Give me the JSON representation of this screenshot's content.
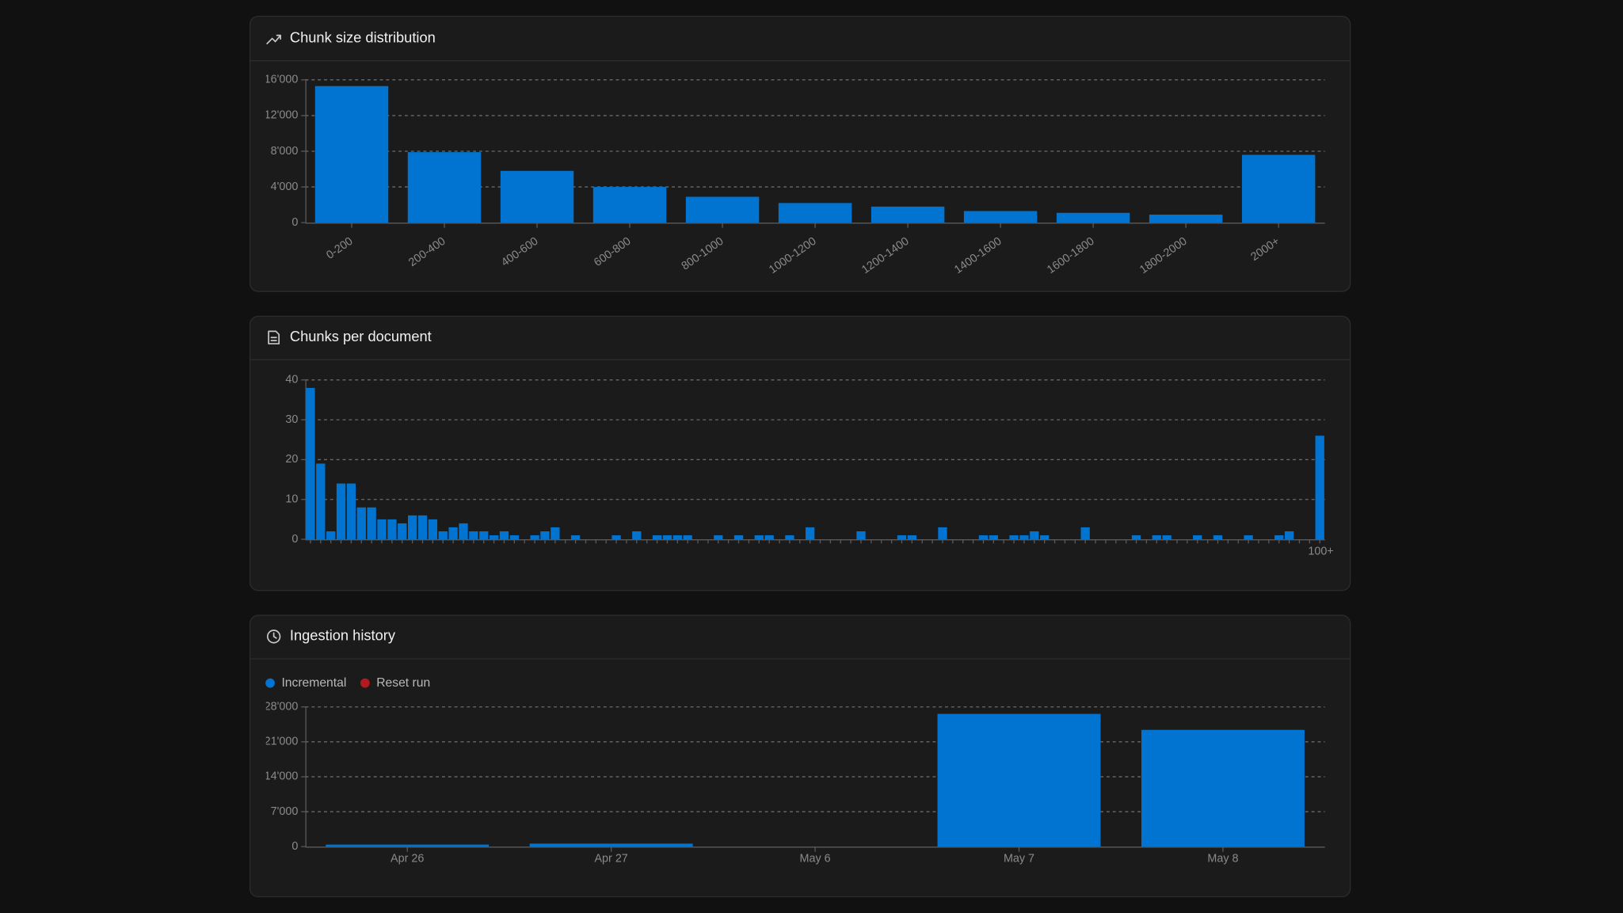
{
  "chart_data": [
    {
      "type": "bar",
      "title": "Chunk size distribution",
      "categories": [
        "0-200",
        "200-400",
        "400-600",
        "600-800",
        "800-1000",
        "1000-1200",
        "1200-1400",
        "1400-1600",
        "1600-1800",
        "1800-2000",
        "2000+"
      ],
      "values": [
        15300,
        7900,
        5800,
        4000,
        2900,
        2200,
        1800,
        1300,
        1100,
        900,
        7600
      ],
      "color": "#0074d0",
      "ylim": [
        0,
        16000
      ],
      "yticks": [
        0,
        {
          "value": 4000,
          "label": "4'000"
        },
        {
          "value": 8000,
          "label": "8'000"
        },
        {
          "value": 12000,
          "label": "12'000"
        },
        {
          "value": 16000,
          "label": "16'000"
        }
      ],
      "grid": true
    },
    {
      "type": "bar",
      "title": "Chunks per document",
      "categories": [
        null,
        null,
        null,
        null,
        null,
        null,
        null,
        null,
        null,
        null,
        null,
        null,
        null,
        null,
        null,
        null,
        null,
        null,
        null,
        null,
        null,
        null,
        null,
        null,
        null,
        null,
        null,
        null,
        null,
        null,
        null,
        null,
        null,
        null,
        null,
        null,
        null,
        null,
        null,
        null,
        null,
        null,
        null,
        null,
        null,
        null,
        null,
        null,
        null,
        null,
        null,
        null,
        null,
        null,
        null,
        null,
        null,
        null,
        null,
        null,
        null,
        null,
        null,
        null,
        null,
        null,
        null,
        null,
        null,
        null,
        null,
        null,
        null,
        null,
        null,
        null,
        null,
        null,
        null,
        null,
        null,
        null,
        null,
        null,
        null,
        null,
        null,
        null,
        null,
        null,
        null,
        null,
        null,
        null,
        null,
        null,
        null,
        null,
        null,
        "100+"
      ],
      "values": [
        38,
        19,
        2,
        14,
        14,
        8,
        8,
        5,
        5,
        4,
        6,
        6,
        5,
        2,
        3,
        4,
        2,
        2,
        1,
        2,
        1,
        0,
        1,
        2,
        3,
        0,
        1,
        0,
        0,
        0,
        1,
        0,
        2,
        0,
        1,
        1,
        1,
        1,
        0,
        0,
        1,
        0,
        1,
        0,
        1,
        1,
        0,
        1,
        0,
        3,
        0,
        0,
        0,
        0,
        2,
        0,
        0,
        0,
        1,
        1,
        0,
        0,
        3,
        0,
        0,
        0,
        1,
        1,
        0,
        1,
        1,
        2,
        1,
        0,
        0,
        0,
        3,
        0,
        0,
        0,
        0,
        1,
        0,
        1,
        1,
        0,
        0,
        1,
        0,
        1,
        0,
        0,
        1,
        0,
        0,
        1,
        2,
        0,
        0,
        26
      ],
      "color": "#0074d0",
      "ylim": [
        0,
        40
      ],
      "yticks": [
        0,
        10,
        20,
        30,
        40
      ],
      "grid": true
    },
    {
      "type": "bar",
      "title": "Ingestion history",
      "categories": [
        "Apr 26",
        "Apr 27",
        "May 6",
        "May 7",
        "May 8"
      ],
      "series": [
        {
          "name": "Incremental",
          "color": "#0074d0",
          "values": [
            400,
            600,
            0,
            26600,
            23400
          ]
        },
        {
          "name": "Reset run",
          "color": "#b3191d",
          "values": [
            0,
            0,
            0,
            0,
            0
          ]
        }
      ],
      "stacked": true,
      "legend": "top-left",
      "ylim": [
        0,
        28000
      ],
      "yticks": [
        0,
        {
          "value": 7000,
          "label": "7'000"
        },
        {
          "value": 14000,
          "label": "14'000"
        },
        {
          "value": 21000,
          "label": "21'000"
        },
        {
          "value": 28000,
          "label": "28'000"
        }
      ],
      "grid": true
    }
  ]
}
